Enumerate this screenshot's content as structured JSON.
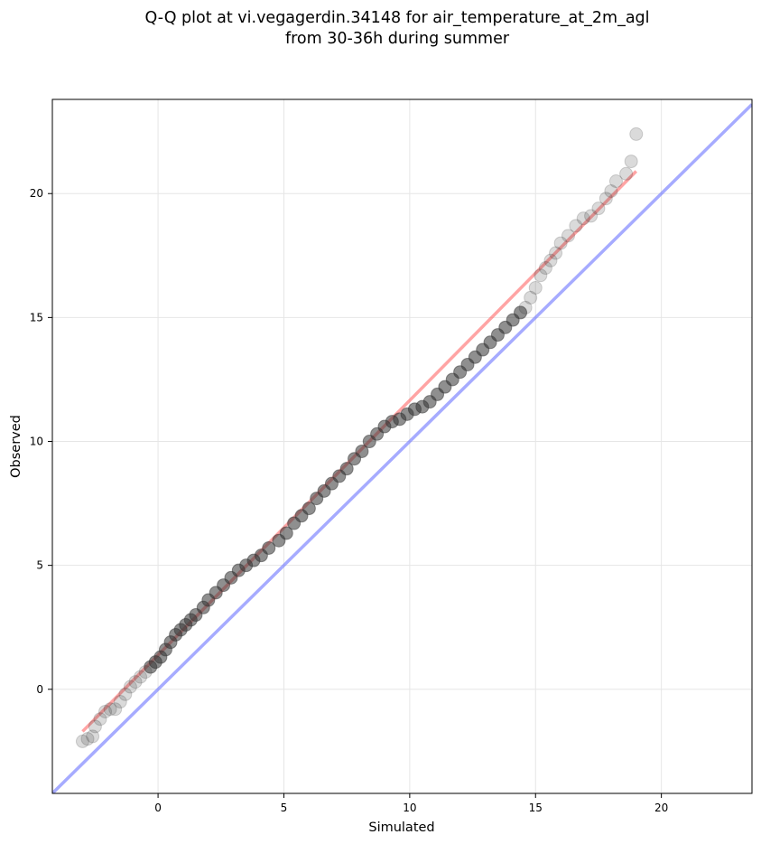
{
  "chart_data": {
    "type": "scatter",
    "title_lines": [
      "Q-Q plot at vi.vegagerdin.34148 for air_temperature_at_2m_agl",
      "from 30-36h during summer"
    ],
    "xlabel": "Simulated",
    "ylabel": "Observed",
    "xlim": [
      -4.2,
      23.6
    ],
    "ylim": [
      -4.2,
      23.8
    ],
    "xticks": [
      0,
      5,
      10,
      15,
      20
    ],
    "yticks": [
      0,
      5,
      10,
      15,
      20
    ],
    "grid": true,
    "colors": {
      "points": "#333333",
      "fit_line": "#ff5a5a",
      "identity_line": "#6b73ff",
      "grid": "#e6e6e6"
    },
    "series": [
      {
        "kind": "quantile_points",
        "x": [
          -3.0,
          -2.8,
          -2.6,
          -2.5,
          -2.3,
          -2.1,
          -1.9,
          -1.7,
          -1.5,
          -1.3,
          -1.1,
          -0.9,
          -0.7,
          -0.5,
          -0.3,
          -0.1,
          0.1,
          0.3,
          0.5,
          0.7,
          0.9,
          1.1,
          1.3,
          1.5,
          1.8,
          2.0,
          2.3,
          2.6,
          2.9,
          3.2,
          3.5,
          3.8,
          4.1,
          4.4,
          4.8,
          5.1,
          5.4,
          5.7,
          6.0,
          6.3,
          6.6,
          6.9,
          7.2,
          7.5,
          7.8,
          8.1,
          8.4,
          8.7,
          9.0,
          9.3,
          9.6,
          9.9,
          10.2,
          10.5,
          10.8,
          11.1,
          11.4,
          11.7,
          12.0,
          12.3,
          12.6,
          12.9,
          13.2,
          13.5,
          13.8,
          14.1,
          14.4,
          14.6,
          14.8,
          15.0,
          15.2,
          15.4,
          15.6,
          15.8,
          16.0,
          16.3,
          16.6,
          16.9,
          17.2,
          17.5,
          17.8,
          18.0,
          18.2,
          18.6,
          18.8,
          19.0
        ],
        "y": [
          -2.1,
          -2.0,
          -1.9,
          -1.5,
          -1.2,
          -0.9,
          -0.8,
          -0.8,
          -0.5,
          -0.2,
          0.1,
          0.3,
          0.5,
          0.7,
          0.9,
          1.1,
          1.3,
          1.6,
          1.9,
          2.2,
          2.4,
          2.6,
          2.8,
          3.0,
          3.3,
          3.6,
          3.9,
          4.2,
          4.5,
          4.8,
          5.0,
          5.2,
          5.4,
          5.7,
          6.0,
          6.3,
          6.7,
          7.0,
          7.3,
          7.7,
          8.0,
          8.3,
          8.6,
          8.9,
          9.3,
          9.6,
          10.0,
          10.3,
          10.6,
          10.8,
          10.9,
          11.1,
          11.3,
          11.4,
          11.6,
          11.9,
          12.2,
          12.5,
          12.8,
          13.1,
          13.4,
          13.7,
          14.0,
          14.3,
          14.6,
          14.9,
          15.2,
          15.4,
          15.8,
          16.2,
          16.7,
          17.0,
          17.3,
          17.6,
          18.0,
          18.3,
          18.7,
          19.0,
          19.1,
          19.4,
          19.8,
          20.1,
          20.5,
          20.8,
          21.3,
          22.4
        ]
      },
      {
        "kind": "fit_line",
        "x": [
          -3.0,
          19.0
        ],
        "y": [
          -1.7,
          20.9
        ]
      },
      {
        "kind": "identity_line",
        "x": [
          -4.2,
          23.6
        ],
        "y": [
          -4.2,
          23.6
        ]
      }
    ]
  }
}
